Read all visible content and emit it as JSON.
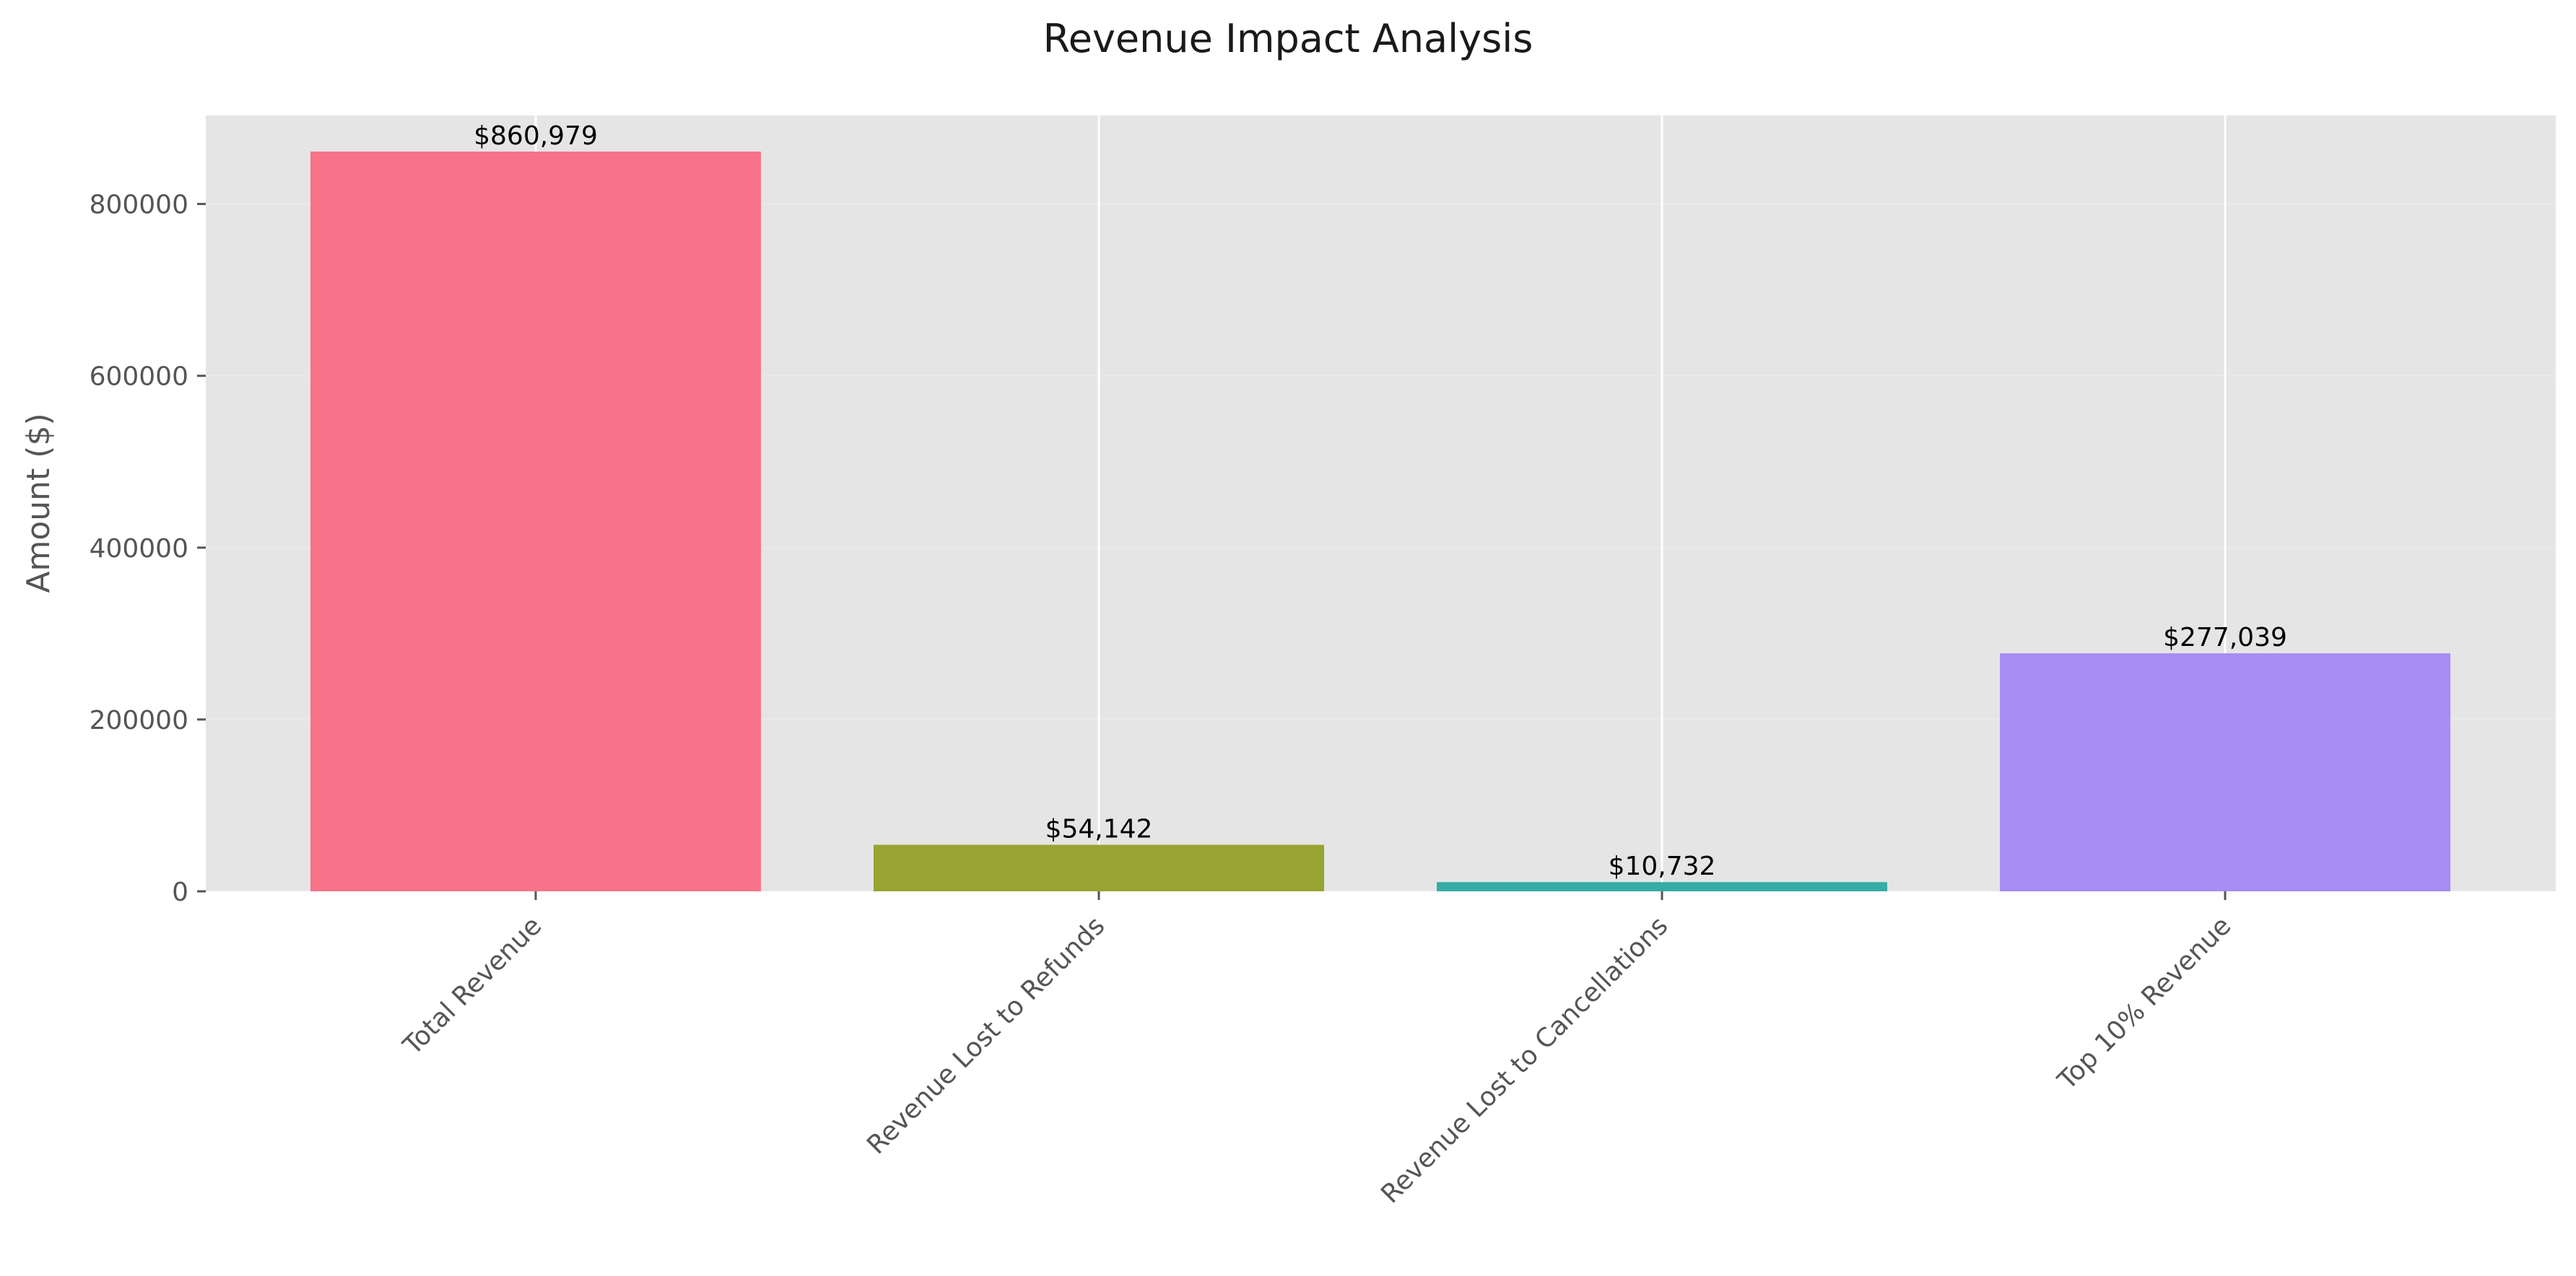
{
  "chart_data": {
    "type": "bar",
    "title": "Revenue Impact Analysis",
    "xlabel": "",
    "ylabel": "Amount ($)",
    "categories": [
      "Total Revenue",
      "Revenue Lost to Refunds",
      "Revenue Lost to Cancellations",
      "Top 10% Revenue"
    ],
    "values": [
      860979,
      54142,
      10732,
      277039
    ],
    "value_labels": [
      "$860,979",
      "$54,142",
      "$10,732",
      "$277,039"
    ],
    "colors": [
      "#f7738a",
      "#97a431",
      "#36ada4",
      "#a78cf4"
    ],
    "ylim": [
      0,
      903000
    ],
    "yticks": [
      0,
      200000,
      400000,
      600000,
      800000
    ],
    "ytick_labels": [
      "0",
      "200000",
      "400000",
      "600000",
      "800000"
    ],
    "grid": true,
    "style": {
      "plot_background": "#e5e5e5",
      "grid_color": "#ffffff"
    }
  }
}
